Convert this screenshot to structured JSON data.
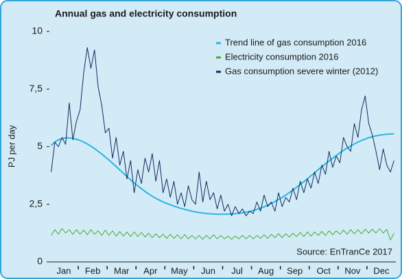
{
  "chart_data": {
    "type": "line",
    "title": "Annual gas and electricity consumption",
    "ylabel": "PJ per day",
    "source": "Source: EnTranCe 2017",
    "legend": "upper right",
    "ylim": [
      0,
      10
    ],
    "yticks": [
      0,
      {
        "value": 2.5,
        "label": "2,5"
      },
      5,
      {
        "value": 7.5,
        "label": "7,5"
      },
      10
    ],
    "categories": [
      null,
      null,
      null,
      null,
      "Jan",
      null,
      null,
      null,
      null,
      null,
      null,
      null,
      "Feb",
      null,
      null,
      null,
      null,
      null,
      null,
      null,
      "Mar",
      null,
      null,
      null,
      null,
      null,
      null,
      null,
      "Apr",
      null,
      null,
      null,
      null,
      null,
      null,
      null,
      "May",
      null,
      null,
      null,
      null,
      null,
      null,
      null,
      "Jun",
      null,
      null,
      null,
      null,
      null,
      null,
      null,
      "Jul",
      null,
      null,
      null,
      null,
      null,
      null,
      null,
      "Aug",
      null,
      null,
      null,
      null,
      null,
      null,
      null,
      "Sep",
      null,
      null,
      null,
      null,
      null,
      null,
      null,
      "Oct",
      null,
      null,
      null,
      null,
      null,
      null,
      null,
      "Nov",
      null,
      null,
      null,
      null,
      null,
      null,
      null,
      "Dec",
      null,
      null,
      null
    ],
    "series": [
      {
        "name": "Trend line of gas consumption 2016",
        "color": "#29b4e6",
        "width": 2,
        "values": [
          5.05,
          5.2,
          5.3,
          5.35,
          5.38,
          5.38,
          5.36,
          5.32,
          5.27,
          5.2,
          5.12,
          5.02,
          4.92,
          4.8,
          4.68,
          4.55,
          4.42,
          4.28,
          4.14,
          3.99,
          3.85,
          3.7,
          3.56,
          3.42,
          3.3,
          3.18,
          3.06,
          2.95,
          2.85,
          2.76,
          2.68,
          2.6,
          2.54,
          2.48,
          2.42,
          2.37,
          2.32,
          2.28,
          2.24,
          2.2,
          2.17,
          2.14,
          2.12,
          2.1,
          2.09,
          2.08,
          2.07,
          2.07,
          2.07,
          2.07,
          2.08,
          2.09,
          2.11,
          2.13,
          2.16,
          2.19,
          2.23,
          2.28,
          2.33,
          2.39,
          2.46,
          2.54,
          2.62,
          2.71,
          2.8,
          2.9,
          3.01,
          3.12,
          3.24,
          3.36,
          3.48,
          3.61,
          3.74,
          3.87,
          4.0,
          4.13,
          4.26,
          4.38,
          4.5,
          4.62,
          4.73,
          4.84,
          4.94,
          5.03,
          5.12,
          5.2,
          5.27,
          5.33,
          5.39,
          5.43,
          5.47,
          5.5,
          5.52,
          5.54,
          5.55,
          5.56
        ]
      },
      {
        "name": "Electricity consumption 2016",
        "color": "#4aa83a",
        "width": 1,
        "values": [
          1.15,
          1.4,
          1.2,
          1.45,
          1.25,
          1.4,
          1.2,
          1.4,
          1.2,
          1.38,
          1.18,
          1.4,
          1.2,
          1.35,
          1.15,
          1.38,
          1.15,
          1.35,
          1.12,
          1.32,
          1.12,
          1.3,
          1.1,
          1.3,
          1.1,
          1.28,
          1.08,
          1.25,
          1.05,
          1.22,
          1.05,
          1.2,
          1.02,
          1.2,
          1.02,
          1.18,
          1.0,
          1.18,
          1.0,
          1.15,
          1.0,
          1.15,
          0.98,
          1.15,
          1.0,
          1.18,
          1.0,
          1.15,
          1.0,
          1.12,
          0.98,
          1.12,
          1.0,
          1.15,
          1.0,
          1.15,
          1.0,
          1.15,
          1.02,
          1.18,
          1.02,
          1.2,
          1.05,
          1.22,
          1.05,
          1.22,
          1.08,
          1.25,
          1.1,
          1.28,
          1.1,
          1.3,
          1.12,
          1.3,
          1.15,
          1.32,
          1.15,
          1.35,
          1.18,
          1.35,
          1.2,
          1.38,
          1.2,
          1.4,
          1.22,
          1.4,
          1.22,
          1.42,
          1.25,
          1.42,
          1.25,
          1.45,
          1.25,
          1.42,
          0.95,
          1.25
        ]
      },
      {
        "name": "Gas consumption severe winter (2012)",
        "color": "#0c2b5e",
        "width": 1,
        "values": [
          3.9,
          5.2,
          5.0,
          5.4,
          5.1,
          6.9,
          5.3,
          6.1,
          6.6,
          8.2,
          9.3,
          8.4,
          9.2,
          7.6,
          6.8,
          5.6,
          5.8,
          4.5,
          5.4,
          4.2,
          4.8,
          3.6,
          4.4,
          3.0,
          4.0,
          3.4,
          4.5,
          3.9,
          4.7,
          3.5,
          4.4,
          3.0,
          3.6,
          2.8,
          3.5,
          2.5,
          3.0,
          2.4,
          3.3,
          2.7,
          2.5,
          3.9,
          2.6,
          3.5,
          2.7,
          3.0,
          2.3,
          2.9,
          2.2,
          2.5,
          2.0,
          2.4,
          2.1,
          2.3,
          2.0,
          2.2,
          2.1,
          2.6,
          2.2,
          2.9,
          2.4,
          2.6,
          2.2,
          3.0,
          2.4,
          2.8,
          2.6,
          3.2,
          2.7,
          3.5,
          3.0,
          3.6,
          3.2,
          3.9,
          3.4,
          4.2,
          3.8,
          4.8,
          4.1,
          4.6,
          4.3,
          5.4,
          5.0,
          4.8,
          6.0,
          5.4,
          6.6,
          7.2,
          6.0,
          5.5,
          4.8,
          4.0,
          4.9,
          4.2,
          3.9,
          4.4
        ]
      }
    ]
  }
}
